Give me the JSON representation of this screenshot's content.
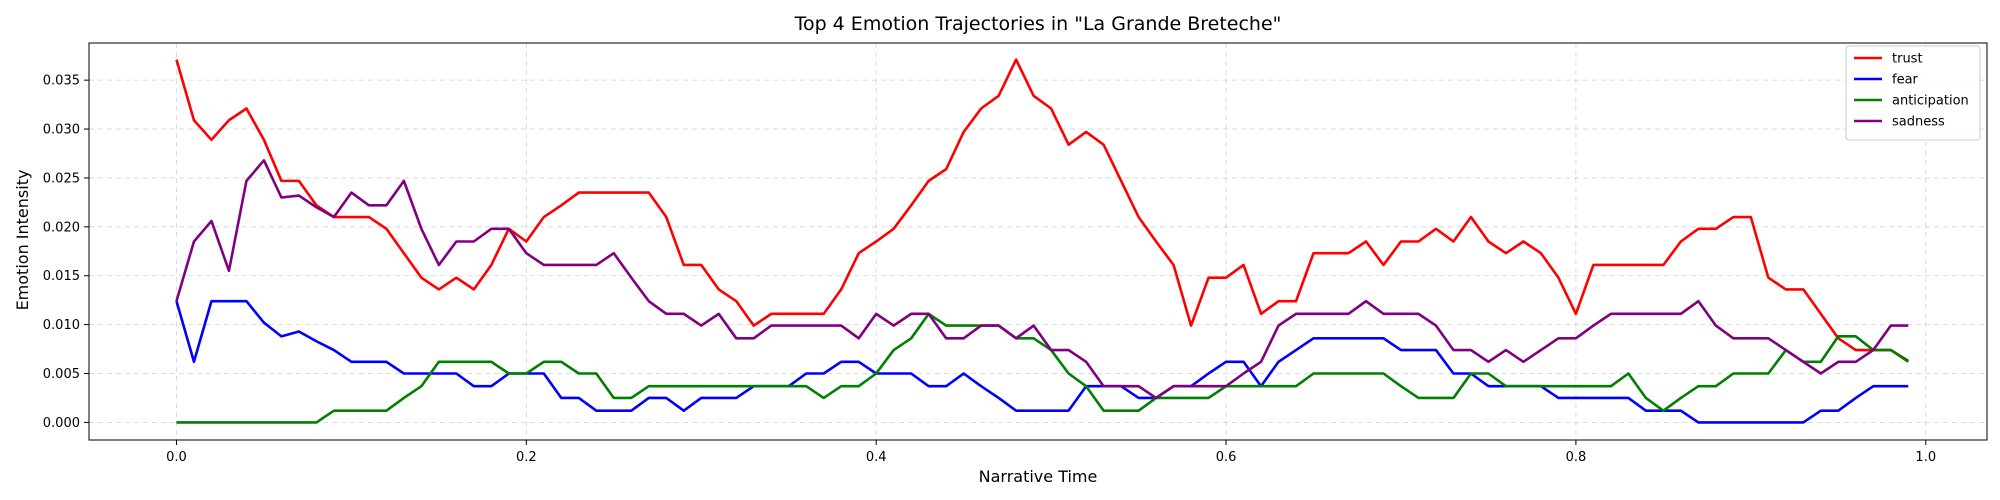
{
  "chart_data": {
    "type": "line",
    "title": "Top 4 Emotion Trajectories in \"La Grande Breteche\"",
    "xlabel": "Narrative Time",
    "ylabel": "Emotion Intensity",
    "xlim": [
      -0.05,
      1.035
    ],
    "ylim": [
      -0.0018,
      0.0388
    ],
    "xticks": [
      0.0,
      0.2,
      0.4,
      0.6,
      0.8,
      1.0
    ],
    "xtick_labels": [
      "0.0",
      "0.2",
      "0.4",
      "0.6",
      "0.8",
      "1.0"
    ],
    "yticks": [
      0.0,
      0.005,
      0.01,
      0.015,
      0.02,
      0.025,
      0.03,
      0.035
    ],
    "ytick_labels": [
      "0.000",
      "0.005",
      "0.010",
      "0.015",
      "0.020",
      "0.025",
      "0.030",
      "0.035"
    ],
    "grid": true,
    "legend": "top-right",
    "x": [
      0.0,
      0.01,
      0.02,
      0.03,
      0.04,
      0.05,
      0.06,
      0.07,
      0.08,
      0.09,
      0.1,
      0.11,
      0.12,
      0.13,
      0.14,
      0.15,
      0.16,
      0.17,
      0.18,
      0.19,
      0.2,
      0.21,
      0.22,
      0.23,
      0.24,
      0.25,
      0.26,
      0.27,
      0.28,
      0.29,
      0.3,
      0.31,
      0.32,
      0.33,
      0.34,
      0.35,
      0.36,
      0.37,
      0.38,
      0.39,
      0.4,
      0.41,
      0.42,
      0.43,
      0.44,
      0.45,
      0.46,
      0.47,
      0.48,
      0.49,
      0.5,
      0.51,
      0.52,
      0.53,
      0.54,
      0.55,
      0.56,
      0.57,
      0.58,
      0.59,
      0.6,
      0.61,
      0.62,
      0.63,
      0.64,
      0.65,
      0.66,
      0.67,
      0.68,
      0.69,
      0.7,
      0.71,
      0.72,
      0.73,
      0.74,
      0.75,
      0.76,
      0.77,
      0.78,
      0.79,
      0.8,
      0.81,
      0.82,
      0.83,
      0.84,
      0.85,
      0.86,
      0.87,
      0.88,
      0.89,
      0.9,
      0.91,
      0.92,
      0.93,
      0.94,
      0.95,
      0.96,
      0.97,
      0.98,
      0.99
    ],
    "series": [
      {
        "name": "trust",
        "color": "#ff0000",
        "values": [
          0.0371,
          0.0309,
          0.0289,
          0.0309,
          0.0321,
          0.0289,
          0.0247,
          0.0247,
          0.0222,
          0.021,
          0.021,
          0.021,
          0.0198,
          0.0173,
          0.0148,
          0.0136,
          0.0148,
          0.0136,
          0.0161,
          0.0198,
          0.0185,
          0.021,
          0.0222,
          0.0235,
          0.0235,
          0.0235,
          0.0235,
          0.0235,
          0.021,
          0.0161,
          0.0161,
          0.0136,
          0.0124,
          0.0099,
          0.0111,
          0.0111,
          0.0111,
          0.0111,
          0.0136,
          0.0173,
          0.0185,
          0.0198,
          0.0222,
          0.0247,
          0.0259,
          0.0297,
          0.0321,
          0.0334,
          0.0371,
          0.0334,
          0.0321,
          0.0284,
          0.0297,
          0.0284,
          0.0247,
          0.021,
          0.0185,
          0.0161,
          0.0099,
          0.0148,
          0.0148,
          0.0161,
          0.0111,
          0.0124,
          0.0124,
          0.0173,
          0.0173,
          0.0173,
          0.0185,
          0.0161,
          0.0185,
          0.0185,
          0.0198,
          0.0185,
          0.021,
          0.0185,
          0.0173,
          0.0185,
          0.0173,
          0.0148,
          0.0111,
          0.0161,
          0.0161,
          0.0161,
          0.0161,
          0.0161,
          0.0185,
          0.0198,
          0.0198,
          0.021,
          0.021,
          0.0148,
          0.0136,
          0.0136,
          0.0111,
          0.0086,
          0.0074,
          0.0074,
          0.0074,
          0.0063
        ]
      },
      {
        "name": "fear",
        "color": "#0000ff",
        "values": [
          0.0124,
          0.0062,
          0.0124,
          0.0124,
          0.0124,
          0.0102,
          0.0088,
          0.0093,
          0.0083,
          0.0074,
          0.0062,
          0.0062,
          0.0062,
          0.005,
          0.005,
          0.005,
          0.005,
          0.0037,
          0.0037,
          0.005,
          0.005,
          0.005,
          0.0025,
          0.0025,
          0.0012,
          0.0012,
          0.0012,
          0.0025,
          0.0025,
          0.0012,
          0.0025,
          0.0025,
          0.0025,
          0.0037,
          0.0037,
          0.0037,
          0.005,
          0.005,
          0.0062,
          0.0062,
          0.005,
          0.005,
          0.005,
          0.0037,
          0.0037,
          0.005,
          0.0037,
          0.0025,
          0.0012,
          0.0012,
          0.0012,
          0.0012,
          0.0037,
          0.0037,
          0.0037,
          0.0025,
          0.0025,
          0.0037,
          0.0037,
          0.005,
          0.0062,
          0.0062,
          0.0037,
          0.0062,
          0.0074,
          0.0086,
          0.0086,
          0.0086,
          0.0086,
          0.0086,
          0.0074,
          0.0074,
          0.0074,
          0.005,
          0.005,
          0.0037,
          0.0037,
          0.0037,
          0.0037,
          0.0025,
          0.0025,
          0.0025,
          0.0025,
          0.0025,
          0.0012,
          0.0012,
          0.0012,
          0.0,
          0.0,
          0.0,
          0.0,
          0.0,
          0.0,
          0.0,
          0.0012,
          0.0012,
          0.0025,
          0.0037,
          0.0037,
          0.0037
        ]
      },
      {
        "name": "anticipation",
        "color": "#008000",
        "values": [
          0.0,
          0.0,
          0.0,
          0.0,
          0.0,
          0.0,
          0.0,
          0.0,
          0.0,
          0.0012,
          0.0012,
          0.0012,
          0.0012,
          0.0025,
          0.0037,
          0.0062,
          0.0062,
          0.0062,
          0.0062,
          0.005,
          0.005,
          0.0062,
          0.0062,
          0.005,
          0.005,
          0.0025,
          0.0025,
          0.0037,
          0.0037,
          0.0037,
          0.0037,
          0.0037,
          0.0037,
          0.0037,
          0.0037,
          0.0037,
          0.0037,
          0.0025,
          0.0037,
          0.0037,
          0.005,
          0.0074,
          0.0086,
          0.0111,
          0.0099,
          0.0099,
          0.0099,
          0.0099,
          0.0086,
          0.0086,
          0.0074,
          0.005,
          0.0037,
          0.0012,
          0.0012,
          0.0012,
          0.0025,
          0.0025,
          0.0025,
          0.0025,
          0.0037,
          0.0037,
          0.0037,
          0.0037,
          0.0037,
          0.005,
          0.005,
          0.005,
          0.005,
          0.005,
          0.0037,
          0.0025,
          0.0025,
          0.0025,
          0.005,
          0.005,
          0.0037,
          0.0037,
          0.0037,
          0.0037,
          0.0037,
          0.0037,
          0.0037,
          0.005,
          0.0025,
          0.0012,
          0.0025,
          0.0037,
          0.0037,
          0.005,
          0.005,
          0.005,
          0.0074,
          0.0062,
          0.0062,
          0.0088,
          0.0088,
          0.0074,
          0.0074,
          0.0062
        ]
      },
      {
        "name": "sadness",
        "color": "#800080",
        "values": [
          0.0124,
          0.0185,
          0.0206,
          0.0155,
          0.0247,
          0.0268,
          0.023,
          0.0232,
          0.022,
          0.021,
          0.0235,
          0.0222,
          0.0222,
          0.0247,
          0.0198,
          0.0161,
          0.0185,
          0.0185,
          0.0198,
          0.0198,
          0.0173,
          0.0161,
          0.0161,
          0.0161,
          0.0161,
          0.0173,
          0.0148,
          0.0124,
          0.0111,
          0.0111,
          0.0099,
          0.0111,
          0.0086,
          0.0086,
          0.0099,
          0.0099,
          0.0099,
          0.0099,
          0.0099,
          0.0086,
          0.0111,
          0.0099,
          0.0111,
          0.0111,
          0.0086,
          0.0086,
          0.0099,
          0.0099,
          0.0086,
          0.0099,
          0.0074,
          0.0074,
          0.0062,
          0.0037,
          0.0037,
          0.0037,
          0.0025,
          0.0037,
          0.0037,
          0.0037,
          0.0037,
          0.005,
          0.0062,
          0.0099,
          0.0111,
          0.0111,
          0.0111,
          0.0111,
          0.0124,
          0.0111,
          0.0111,
          0.0111,
          0.0099,
          0.0074,
          0.0074,
          0.0062,
          0.0074,
          0.0062,
          0.0074,
          0.0086,
          0.0086,
          0.0099,
          0.0111,
          0.0111,
          0.0111,
          0.0111,
          0.0111,
          0.0124,
          0.0099,
          0.0086,
          0.0086,
          0.0086,
          0.0074,
          0.0062,
          0.005,
          0.0062,
          0.0062,
          0.0074,
          0.0099,
          0.0099
        ]
      }
    ]
  }
}
